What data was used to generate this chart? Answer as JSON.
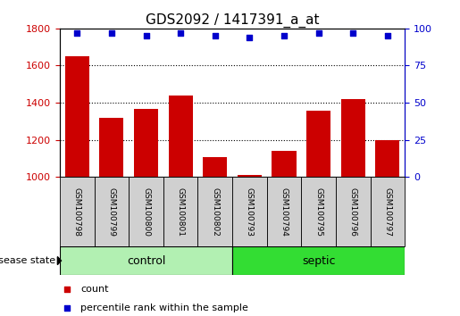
{
  "title": "GDS2092 / 1417391_a_at",
  "samples": [
    "GSM100798",
    "GSM100799",
    "GSM100800",
    "GSM100801",
    "GSM100802",
    "GSM100793",
    "GSM100794",
    "GSM100795",
    "GSM100796",
    "GSM100797"
  ],
  "counts": [
    1650,
    1320,
    1365,
    1440,
    1105,
    1010,
    1140,
    1355,
    1420,
    1200
  ],
  "percentile_ranks": [
    97,
    97,
    95,
    97,
    95,
    94,
    95,
    97,
    97,
    95
  ],
  "groups": [
    "control",
    "control",
    "control",
    "control",
    "control",
    "septic",
    "septic",
    "septic",
    "septic",
    "septic"
  ],
  "bar_color": "#cc0000",
  "dot_color": "#0000cc",
  "ylim_left": [
    1000,
    1800
  ],
  "ylim_right": [
    0,
    100
  ],
  "yticks_left": [
    1000,
    1200,
    1400,
    1600,
    1800
  ],
  "yticks_right": [
    0,
    25,
    50,
    75,
    100
  ],
  "control_color": "#b2f0b2",
  "septic_color": "#33dd33",
  "sample_bg_color": "#d0d0d0",
  "title_fontsize": 11,
  "legend_count_color": "#cc0000",
  "legend_pct_color": "#0000cc"
}
